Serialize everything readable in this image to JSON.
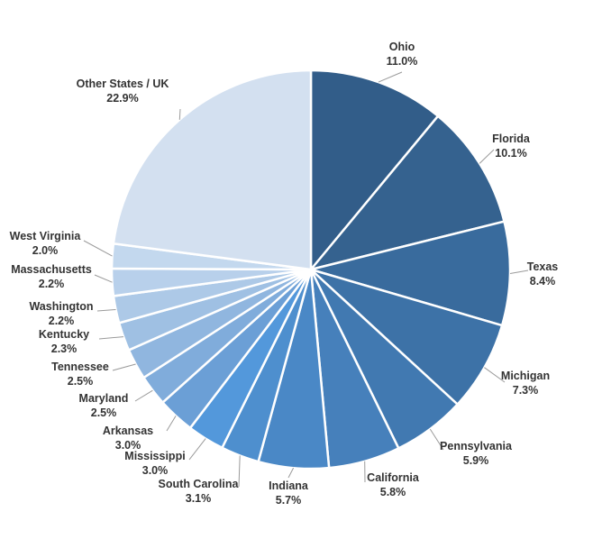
{
  "chart_data": {
    "type": "pie",
    "title": "",
    "slices": [
      {
        "label": "Ohio",
        "value": 11.0,
        "text": "11.0%",
        "color": "#325d89"
      },
      {
        "label": "Florida",
        "value": 10.1,
        "text": "10.1%",
        "color": "#35628f"
      },
      {
        "label": "Texas",
        "value": 8.4,
        "text": "8.4%",
        "color": "#396b9d"
      },
      {
        "label": "Michigan",
        "value": 7.3,
        "text": "7.3%",
        "color": "#3d72a7"
      },
      {
        "label": "Pennsylvania",
        "value": 5.9,
        "text": "5.9%",
        "color": "#4179b1"
      },
      {
        "label": "California",
        "value": 5.8,
        "text": "5.8%",
        "color": "#4680bb"
      },
      {
        "label": "Indiana",
        "value": 5.7,
        "text": "5.7%",
        "color": "#4a88c6"
      },
      {
        "label": "South Carolina",
        "value": 3.1,
        "text": "3.1%",
        "color": "#4e8fce"
      },
      {
        "label": "Mississippi",
        "value": 3.0,
        "text": "3.0%",
        "color": "#5398db"
      },
      {
        "label": "Arkansas",
        "value": 3.0,
        "text": "3.0%",
        "color": "#6b9fd6"
      },
      {
        "label": "Maryland",
        "value": 2.5,
        "text": "2.5%",
        "color": "#80acdb"
      },
      {
        "label": "Tennessee",
        "value": 2.5,
        "text": "2.5%",
        "color": "#90b6df"
      },
      {
        "label": "Kentucky",
        "value": 2.3,
        "text": "2.3%",
        "color": "#9fc0e3"
      },
      {
        "label": "Washington",
        "value": 2.2,
        "text": "2.2%",
        "color": "#adc9e7"
      },
      {
        "label": "Massachusetts",
        "value": 2.2,
        "text": "2.2%",
        "color": "#b8d0eb"
      },
      {
        "label": "West Virginia",
        "value": 2.0,
        "text": "2.0%",
        "color": "#c3d8ee"
      },
      {
        "label": "Other States / UK",
        "value": 22.9,
        "text": "22.9%",
        "color": "#d3e0f0"
      }
    ]
  }
}
